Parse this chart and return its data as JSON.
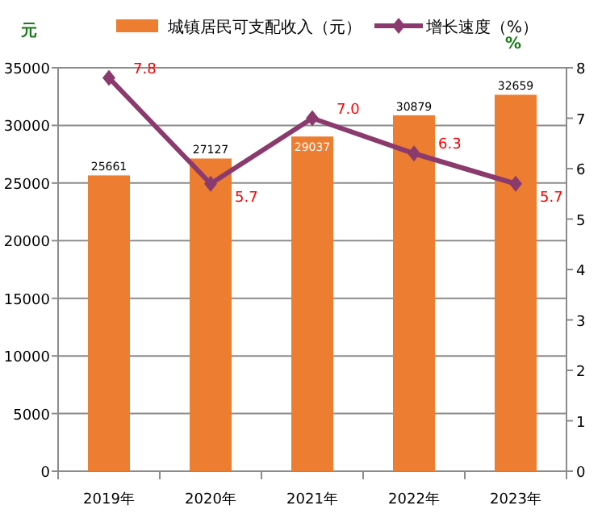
{
  "chart_data": {
    "type": "bar",
    "categories": [
      "2019年",
      "2020年",
      "2021年",
      "2022年",
      "2023年"
    ],
    "series": [
      {
        "name": "城镇居民可支配收入（元）",
        "color": "#ed7d31",
        "values": [
          25661,
          27127,
          29037,
          30879,
          32659
        ],
        "value_labels": [
          "25661",
          "27127",
          "29037",
          "30879",
          "32659"
        ]
      },
      {
        "name": "增长速度（%）",
        "type": "line",
        "axis": "y2",
        "color": "#8b3a6e",
        "marker": "diamond",
        "values": [
          7.8,
          5.7,
          7.0,
          6.3,
          5.7
        ],
        "value_labels": [
          "7.8",
          "5.7",
          "7.0",
          "6.3",
          "5.7"
        ]
      }
    ],
    "ylabel": "元",
    "y2label": "%",
    "ylim": [
      0,
      35000
    ],
    "yticks": [
      0,
      5000,
      10000,
      15000,
      20000,
      25000,
      30000,
      35000
    ],
    "y2lim": [
      0,
      8
    ],
    "y2ticks": [
      0,
      1,
      2,
      3,
      4,
      5,
      6,
      7,
      8
    ],
    "grid": "y",
    "legend": "top"
  }
}
